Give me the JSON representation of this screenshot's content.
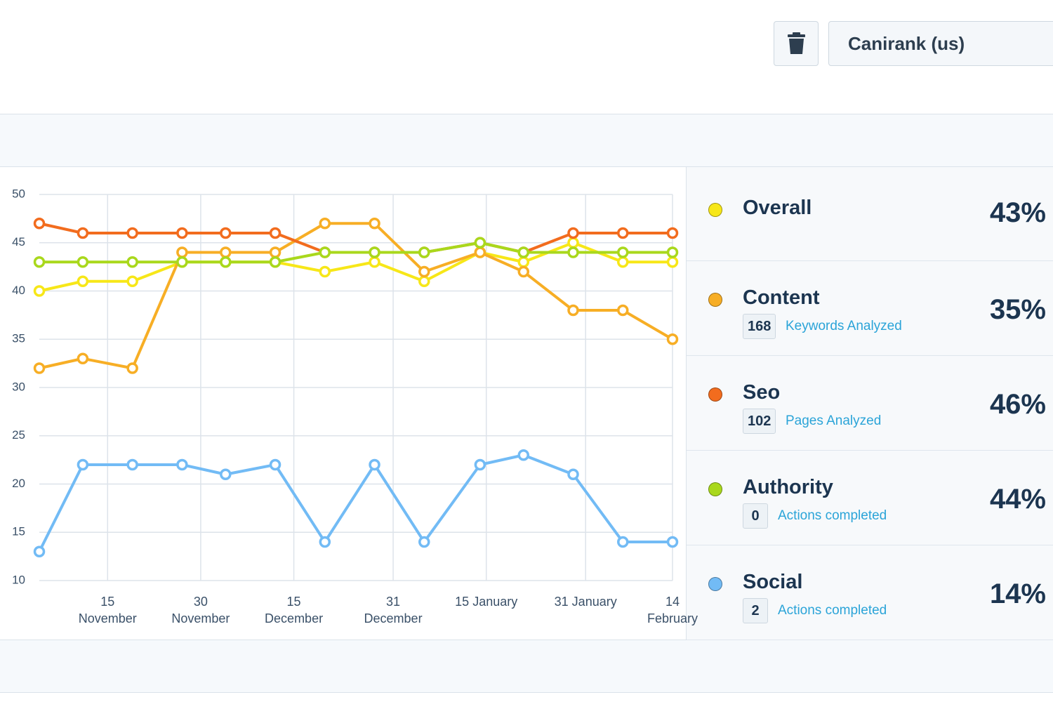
{
  "header": {
    "site": "Canirank (us)"
  },
  "chart_data": {
    "type": "line",
    "x": [
      "4 November",
      "11 November",
      "19 November",
      "27 November",
      "4 December",
      "12 December",
      "20 December",
      "28 December",
      "5 January",
      "14 January",
      "21 January",
      "29 January",
      "6 February",
      "14 February"
    ],
    "xlim": [
      "4 November",
      "14 February"
    ],
    "xticks": [
      "15 November",
      "30 November",
      "15 December",
      "31 December",
      "15 January",
      "31 January",
      "14 February"
    ],
    "ylim": [
      10,
      50
    ],
    "yticks": [
      10,
      15,
      20,
      25,
      30,
      35,
      40,
      45,
      50
    ],
    "grid": true,
    "series": [
      {
        "name": "Overall",
        "color": "#f7e718",
        "values": [
          40,
          41,
          41,
          43,
          43,
          43,
          42,
          43,
          41,
          44,
          43,
          45,
          43,
          43
        ]
      },
      {
        "name": "Content",
        "color": "#f7ae25",
        "values": [
          32,
          33,
          32,
          44,
          44,
          44,
          47,
          47,
          42,
          44,
          42,
          38,
          38,
          35
        ]
      },
      {
        "name": "Seo",
        "color": "#f26c1e",
        "values": [
          47,
          46,
          46,
          46,
          46,
          46,
          44,
          44,
          44,
          45,
          44,
          46,
          46,
          46
        ]
      },
      {
        "name": "Authority",
        "color": "#a9d81c",
        "values": [
          43,
          43,
          43,
          43,
          43,
          43,
          44,
          44,
          44,
          45,
          44,
          44,
          44,
          44
        ]
      },
      {
        "name": "Social",
        "color": "#72bbf5",
        "values": [
          13,
          22,
          22,
          22,
          21,
          22,
          14,
          22,
          14,
          22,
          23,
          21,
          14,
          14
        ]
      }
    ]
  },
  "panel": [
    {
      "score": "43%"
    },
    {
      "score": "35%",
      "count": 168,
      "label": "Keywords Analyzed"
    },
    {
      "score": "46%",
      "count": 102,
      "label": "Pages Analyzed"
    },
    {
      "score": "44%",
      "count": 0,
      "label": "Actions completed"
    },
    {
      "score": "14%",
      "count": 2,
      "label": "Actions completed"
    }
  ]
}
